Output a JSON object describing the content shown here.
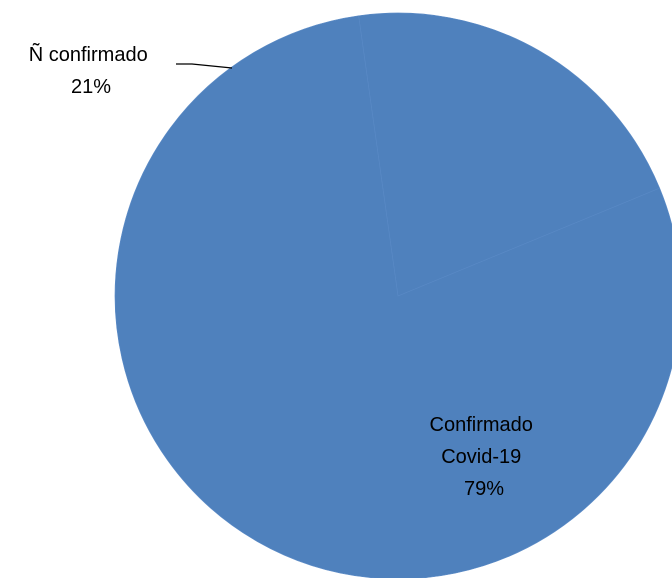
{
  "chart_data": {
    "type": "pie",
    "title": "",
    "slices": [
      {
        "label_lines": [
          "Ñ confirmado",
          "21%"
        ],
        "value": 21,
        "color": "#4f81bd"
      },
      {
        "label_lines": [
          "Confirmado",
          "Covid-19",
          "79%"
        ],
        "value": 79,
        "color": "#4f81bd"
      }
    ],
    "legend": "none"
  }
}
